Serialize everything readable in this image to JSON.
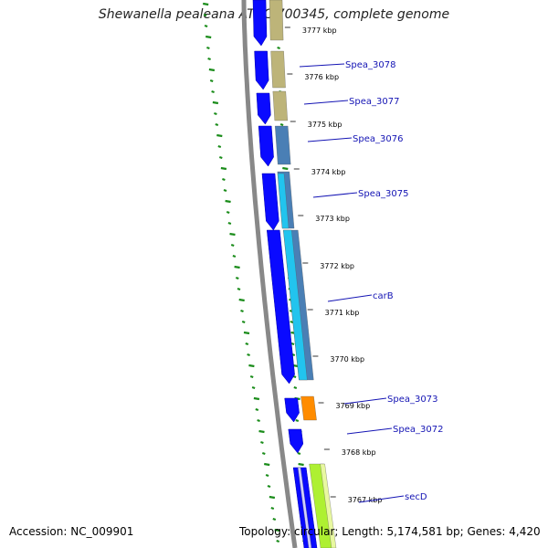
{
  "title": "Shewanella pealeana ATCC 700345, complete genome",
  "footer": {
    "accession": "Accession: NC_009901",
    "topology": "Topology: circular; Length: 5,174,581 bp; Genes: 4,420"
  },
  "colors": {
    "backbone": "#888888",
    "cds": "#0a0aff",
    "gc_line": "#1a8c1a",
    "label": "#1414b4",
    "tan": "#bdb479",
    "steel": "#4a7fb5",
    "cyan": "#22c4ee",
    "orange": "#ff8c00",
    "lime": "#aef032"
  },
  "ticks": [
    {
      "label": "3777 kbp"
    },
    {
      "label": "3776 kbp"
    },
    {
      "label": "3775 kbp"
    },
    {
      "label": "3774 kbp"
    },
    {
      "label": "3773 kbp"
    },
    {
      "label": "3772 kbp"
    },
    {
      "label": "3771 kbp"
    },
    {
      "label": "3770 kbp"
    },
    {
      "label": "3769 kbp"
    },
    {
      "label": "3768 kbp"
    },
    {
      "label": "3767 kbp"
    }
  ],
  "genes": [
    {
      "name": "Spea_3078"
    },
    {
      "name": "Spea_3077"
    },
    {
      "name": "Spea_3076"
    },
    {
      "name": "Spea_3075"
    },
    {
      "name": "carB"
    },
    {
      "name": "Spea_3073"
    },
    {
      "name": "Spea_3072"
    },
    {
      "name": "secD"
    }
  ]
}
